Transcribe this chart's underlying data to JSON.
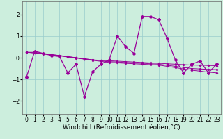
{
  "x": [
    0,
    1,
    2,
    3,
    4,
    5,
    6,
    7,
    8,
    9,
    10,
    11,
    12,
    13,
    14,
    15,
    16,
    17,
    18,
    19,
    20,
    21,
    22,
    23
  ],
  "y_main": [
    -0.9,
    0.3,
    0.2,
    0.1,
    0.05,
    -0.7,
    -0.3,
    -1.8,
    -0.65,
    -0.3,
    -0.1,
    1.0,
    0.5,
    0.2,
    1.9,
    1.9,
    1.75,
    0.9,
    -0.1,
    -0.7,
    -0.3,
    -0.15,
    -0.7,
    -0.3
  ],
  "y_trend1": [
    0.25,
    0.25,
    0.2,
    0.15,
    0.1,
    0.05,
    0.0,
    -0.05,
    -0.1,
    -0.12,
    -0.14,
    -0.16,
    -0.18,
    -0.2,
    -0.22,
    -0.24,
    -0.26,
    -0.28,
    -0.3,
    -0.32,
    -0.34,
    -0.35,
    -0.36,
    -0.37
  ],
  "y_trend2": [
    0.25,
    0.22,
    0.18,
    0.14,
    0.1,
    0.05,
    0.0,
    -0.05,
    -0.1,
    -0.14,
    -0.18,
    -0.2,
    -0.22,
    -0.24,
    -0.26,
    -0.28,
    -0.3,
    -0.35,
    -0.4,
    -0.45,
    -0.5,
    -0.52,
    -0.54,
    -0.55
  ],
  "y_trend3": [
    0.25,
    0.22,
    0.18,
    0.13,
    0.08,
    0.03,
    -0.02,
    -0.07,
    -0.12,
    -0.17,
    -0.22,
    -0.24,
    -0.26,
    -0.28,
    -0.3,
    -0.32,
    -0.34,
    -0.4,
    -0.46,
    -0.52,
    -0.58,
    -0.62,
    -0.67,
    -0.7
  ],
  "color": "#990099",
  "bg_color": "#cceedd",
  "grid_color": "#99cccc",
  "xlabel": "Windchill (Refroidissement éolien,°C)",
  "xlim": [
    -0.5,
    23.5
  ],
  "ylim": [
    -2.6,
    2.6
  ],
  "yticks": [
    -2,
    -1,
    0,
    1,
    2
  ],
  "xticks": [
    0,
    1,
    2,
    3,
    4,
    5,
    6,
    7,
    8,
    9,
    10,
    11,
    12,
    13,
    14,
    15,
    16,
    17,
    18,
    19,
    20,
    21,
    22,
    23
  ],
  "tick_fontsize": 5.5,
  "xlabel_fontsize": 6.5,
  "marker": "D",
  "markersize": 2.0,
  "linewidth": 0.9
}
